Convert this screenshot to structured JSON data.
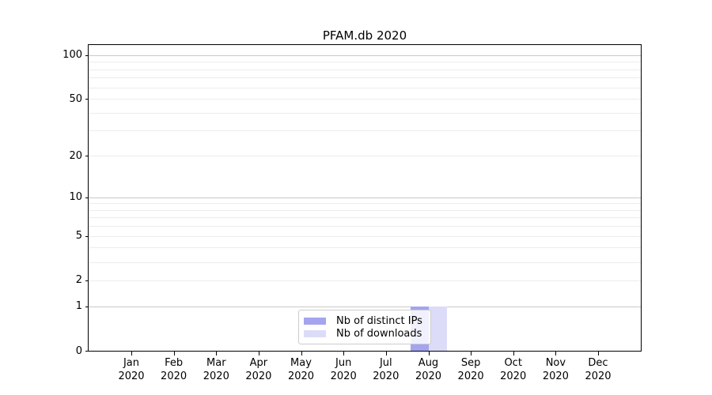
{
  "chart_data": {
    "type": "bar",
    "title": "PFAM.db 2020",
    "year": "2020",
    "months": [
      "Jan",
      "Feb",
      "Mar",
      "Apr",
      "May",
      "Jun",
      "Jul",
      "Aug",
      "Sep",
      "Oct",
      "Nov",
      "Dec"
    ],
    "series": [
      {
        "name": "Nb of distinct IPs",
        "color": "#a4a4ef",
        "values": [
          0,
          0,
          0,
          0,
          0,
          0,
          0,
          1,
          0,
          0,
          0,
          0
        ]
      },
      {
        "name": "Nb of downloads",
        "color": "#dcdcf9",
        "values": [
          0,
          0,
          0,
          0,
          0,
          0,
          0,
          1,
          0,
          0,
          0,
          0
        ]
      }
    ],
    "yscale": "log1p",
    "ylim": [
      0,
      117
    ],
    "yticks": [
      0,
      1,
      2,
      5,
      10,
      20,
      50,
      100
    ],
    "gridlines": {
      "major": [
        1,
        10,
        100
      ],
      "minor": [
        2,
        3,
        4,
        5,
        6,
        7,
        8,
        9,
        20,
        30,
        40,
        50,
        60,
        70,
        80,
        90
      ]
    },
    "grid": "horizontal",
    "legend_position": "bottom-center",
    "xlabel": "",
    "ylabel": ""
  },
  "colors": {
    "spine": "#000000",
    "grid_major": "#c9c9c9",
    "grid_minor": "#ececec",
    "text": "#000000",
    "legend_border": "#cccccc"
  }
}
